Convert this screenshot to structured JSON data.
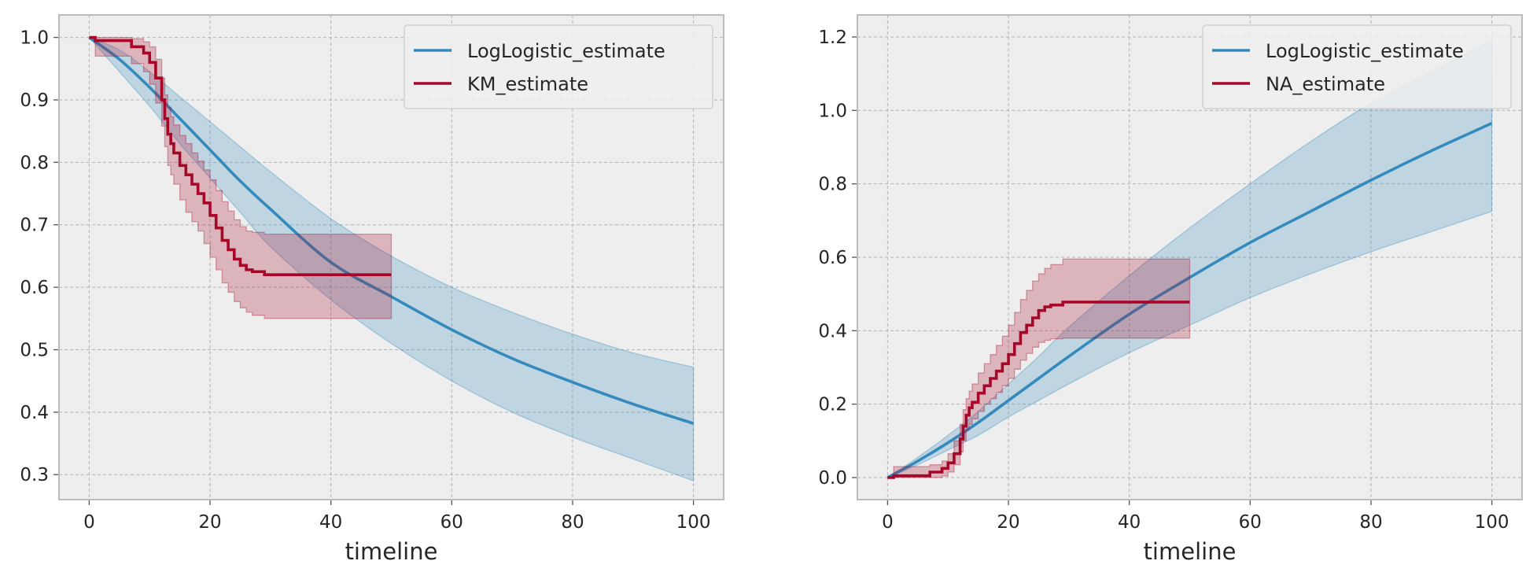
{
  "colors": {
    "background": "#eeeeee",
    "grid": "#b2b2b2",
    "spine": "#bcbcbc",
    "parametric": "#348abd",
    "nonparametric": "#a60628"
  },
  "chart_data": [
    {
      "type": "line",
      "xlabel": "timeline",
      "ylabel": "",
      "xlim": [
        -5,
        105
      ],
      "ylim": [
        0.26,
        1.036
      ],
      "xticks": [
        "0",
        "20",
        "40",
        "60",
        "80",
        "100"
      ],
      "yticks": [
        "0.3",
        "0.4",
        "0.5",
        "0.6",
        "0.7",
        "0.8",
        "0.9",
        "1.0"
      ],
      "grid": true,
      "legend_position": "top-right",
      "series": [
        {
          "name": "LogLogistic_estimate",
          "style": "smooth",
          "x": [
            0,
            5,
            10,
            15,
            20,
            25,
            30,
            40,
            50,
            60,
            70,
            80,
            90,
            100
          ],
          "y": [
            1.0,
            0.965,
            0.92,
            0.87,
            0.82,
            0.77,
            0.725,
            0.64,
            0.585,
            0.532,
            0.486,
            0.448,
            0.413,
            0.382
          ],
          "ci_lower": [
            1.0,
            0.945,
            0.89,
            0.83,
            0.775,
            0.72,
            0.665,
            0.58,
            0.51,
            0.45,
            0.4,
            0.36,
            0.325,
            0.29
          ],
          "ci_upper": [
            1.0,
            0.98,
            0.945,
            0.905,
            0.865,
            0.825,
            0.785,
            0.71,
            0.65,
            0.6,
            0.56,
            0.525,
            0.495,
            0.472
          ]
        },
        {
          "name": "KM_estimate",
          "style": "step",
          "x": [
            0,
            1,
            7,
            9,
            10,
            11,
            12,
            12.5,
            13,
            13.5,
            14,
            15,
            16,
            17,
            18,
            19,
            20,
            21,
            22,
            23,
            24,
            25,
            26,
            27,
            29,
            50
          ],
          "y": [
            1.0,
            0.995,
            0.985,
            0.975,
            0.96,
            0.935,
            0.9,
            0.87,
            0.845,
            0.83,
            0.815,
            0.795,
            0.78,
            0.765,
            0.75,
            0.735,
            0.715,
            0.695,
            0.675,
            0.66,
            0.645,
            0.635,
            0.628,
            0.625,
            0.62,
            0.62
          ],
          "ci_lower": [
            1.0,
            0.97,
            0.958,
            0.945,
            0.925,
            0.895,
            0.858,
            0.825,
            0.795,
            0.78,
            0.765,
            0.74,
            0.72,
            0.705,
            0.69,
            0.67,
            0.648,
            0.628,
            0.607,
            0.592,
            0.577,
            0.567,
            0.56,
            0.555,
            0.55,
            0.55
          ],
          "ci_upper": [
            1.0,
            1.0,
            0.998,
            0.993,
            0.985,
            0.965,
            0.935,
            0.908,
            0.888,
            0.873,
            0.86,
            0.843,
            0.83,
            0.815,
            0.802,
            0.788,
            0.772,
            0.755,
            0.737,
            0.722,
            0.708,
            0.697,
            0.69,
            0.688,
            0.685,
            0.685
          ]
        }
      ]
    },
    {
      "type": "line",
      "xlabel": "timeline",
      "ylabel": "",
      "xlim": [
        -5,
        105
      ],
      "ylim": [
        -0.06,
        1.26
      ],
      "xticks": [
        "0",
        "20",
        "40",
        "60",
        "80",
        "100"
      ],
      "yticks": [
        "0.0",
        "0.2",
        "0.4",
        "0.6",
        "0.8",
        "1.0",
        "1.2"
      ],
      "grid": true,
      "legend_position": "top-right",
      "series": [
        {
          "name": "LogLogistic_estimate",
          "style": "smooth",
          "x": [
            0,
            5,
            10,
            15,
            20,
            25,
            30,
            40,
            50,
            60,
            70,
            80,
            90,
            100
          ],
          "y": [
            0.0,
            0.045,
            0.095,
            0.15,
            0.21,
            0.27,
            0.33,
            0.445,
            0.545,
            0.64,
            0.725,
            0.81,
            0.89,
            0.965
          ],
          "ci_lower": [
            0.0,
            0.035,
            0.075,
            0.115,
            0.165,
            0.21,
            0.255,
            0.34,
            0.415,
            0.49,
            0.555,
            0.615,
            0.67,
            0.725
          ],
          "ci_upper": [
            0.0,
            0.055,
            0.115,
            0.18,
            0.255,
            0.33,
            0.41,
            0.55,
            0.68,
            0.8,
            0.915,
            1.02,
            1.105,
            1.19
          ]
        },
        {
          "name": "NA_estimate",
          "style": "step",
          "x": [
            0,
            1,
            7,
            9,
            10,
            11,
            12,
            12.5,
            13,
            13.5,
            14,
            15,
            16,
            17,
            18,
            19,
            20,
            21,
            22,
            23,
            24,
            25,
            26,
            27,
            29,
            50
          ],
          "y": [
            0.0,
            0.005,
            0.015,
            0.025,
            0.04,
            0.065,
            0.105,
            0.14,
            0.17,
            0.19,
            0.205,
            0.23,
            0.25,
            0.27,
            0.29,
            0.31,
            0.335,
            0.365,
            0.395,
            0.415,
            0.435,
            0.455,
            0.465,
            0.47,
            0.478,
            0.478
          ],
          "ci_lower": [
            0.0,
            0.0,
            0.0,
            0.004,
            0.015,
            0.035,
            0.07,
            0.1,
            0.13,
            0.145,
            0.16,
            0.18,
            0.2,
            0.215,
            0.232,
            0.25,
            0.27,
            0.295,
            0.32,
            0.338,
            0.355,
            0.368,
            0.374,
            0.378,
            0.38,
            0.38
          ],
          "ci_upper": [
            0.0,
            0.03,
            0.035,
            0.045,
            0.065,
            0.1,
            0.145,
            0.185,
            0.215,
            0.235,
            0.255,
            0.285,
            0.31,
            0.335,
            0.36,
            0.385,
            0.415,
            0.45,
            0.485,
            0.51,
            0.535,
            0.555,
            0.57,
            0.58,
            0.595,
            0.595
          ]
        }
      ]
    }
  ]
}
